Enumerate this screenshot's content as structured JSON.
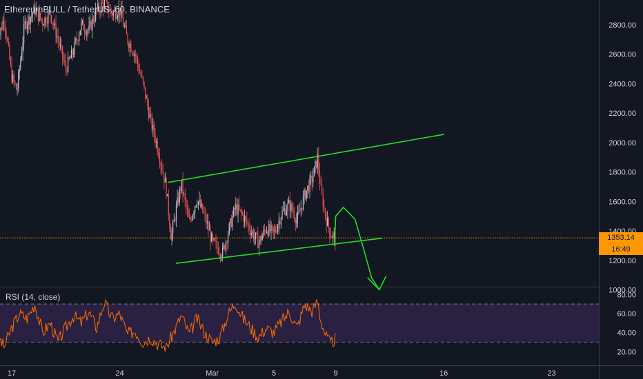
{
  "header": {
    "title": "EthereumBULL / TetherUS, 60, BINANCE",
    "rsi_label": "RSI (14, close)"
  },
  "price_tag": {
    "value": "1353.14",
    "timer": "16:49"
  },
  "colors": {
    "background": "#131722",
    "up_candle": "#bfc4cf",
    "down_candle": "#ef5350",
    "drawing": "#22dd22",
    "rsi_line": "#ff6d00",
    "rsi_band": "#2a2142",
    "price_line": "#ff9800",
    "axis_text": "#d1d4dc"
  },
  "chart_data": [
    {
      "type": "candlestick",
      "title": "EthereumBULL / TetherUS, 60, BINANCE",
      "x_ticks": [
        "17",
        "24",
        "Mar",
        "5",
        "9",
        "16",
        "23"
      ],
      "x_tick_dates": [
        "2020-02-17",
        "2020-02-24",
        "2020-03-01",
        "2020-03-05",
        "2020-03-09",
        "2020-03-16",
        "2020-03-23"
      ],
      "y_ticks": [
        "1000.00",
        "1200.00",
        "1400.00",
        "1600.00",
        "1800.00",
        "2000.00",
        "2200.00",
        "2400.00",
        "2600.00",
        "2800.00"
      ],
      "ylim": [
        900,
        2980
      ],
      "last_price": 1353.14,
      "price_path": [
        [
          "2020-02-16T00:00",
          2650
        ],
        [
          "2020-02-16T12:00",
          2850
        ],
        [
          "2020-02-17T00:00",
          2450
        ],
        [
          "2020-02-17T08:00",
          2350
        ],
        [
          "2020-02-17T20:00",
          2800
        ],
        [
          "2020-02-18T12:00",
          2900
        ],
        [
          "2020-02-19T00:00",
          2820
        ],
        [
          "2020-02-19T12:00",
          2880
        ],
        [
          "2020-02-20T00:00",
          2700
        ],
        [
          "2020-02-20T12:00",
          2500
        ],
        [
          "2020-02-21T00:00",
          2620
        ],
        [
          "2020-02-21T12:00",
          2800
        ],
        [
          "2020-02-22T00:00",
          2760
        ],
        [
          "2020-02-22T12:00",
          2900
        ],
        [
          "2020-02-23T00:00",
          2950
        ],
        [
          "2020-02-23T12:00",
          2880
        ],
        [
          "2020-02-24T00:00",
          2900
        ],
        [
          "2020-02-24T12:00",
          2700
        ],
        [
          "2020-02-25T00:00",
          2600
        ],
        [
          "2020-02-25T12:00",
          2400
        ],
        [
          "2020-02-26T00:00",
          2150
        ],
        [
          "2020-02-26T12:00",
          1950
        ],
        [
          "2020-02-27T00:00",
          1700
        ],
        [
          "2020-02-27T08:00",
          1350
        ],
        [
          "2020-02-27T16:00",
          1550
        ],
        [
          "2020-02-28T00:00",
          1720
        ],
        [
          "2020-02-28T12:00",
          1450
        ],
        [
          "2020-02-29T00:00",
          1620
        ],
        [
          "2020-02-29T12:00",
          1500
        ],
        [
          "2020-03-01T00:00",
          1320
        ],
        [
          "2020-03-01T16:00",
          1250
        ],
        [
          "2020-03-02T00:00",
          1380
        ],
        [
          "2020-03-02T12:00",
          1560
        ],
        [
          "2020-03-03T00:00",
          1500
        ],
        [
          "2020-03-03T12:00",
          1400
        ],
        [
          "2020-03-04T00:00",
          1320
        ],
        [
          "2020-03-04T12:00",
          1420
        ],
        [
          "2020-03-05T00:00",
          1380
        ],
        [
          "2020-03-05T12:00",
          1520
        ],
        [
          "2020-03-06T00:00",
          1580
        ],
        [
          "2020-03-06T12:00",
          1470
        ],
        [
          "2020-03-07T00:00",
          1650
        ],
        [
          "2020-03-07T12:00",
          1760
        ],
        [
          "2020-03-07T20:00",
          1900
        ],
        [
          "2020-03-08T00:00",
          1700
        ],
        [
          "2020-03-08T08:00",
          1500
        ],
        [
          "2020-03-08T16:00",
          1380
        ],
        [
          "2020-03-09T00:00",
          1353
        ]
      ],
      "drawings": {
        "upper_trendline": [
          [
            "2020-02-27T04:00",
            1730
          ],
          [
            "2020-03-16T00:00",
            2055
          ]
        ],
        "lower_trendline": [
          [
            "2020-02-27T16:00",
            1180
          ],
          [
            "2020-03-12T00:00",
            1350
          ]
        ],
        "projected_arrow": [
          [
            "2020-03-08T22:00",
            1300
          ],
          [
            "2020-03-09T00:00",
            1500
          ],
          [
            "2020-03-09T12:00",
            1560
          ],
          [
            "2020-03-10T06:00",
            1480
          ],
          [
            "2020-03-10T18:00",
            1300
          ],
          [
            "2020-03-11T08:00",
            1080
          ],
          [
            "2020-03-11T20:00",
            1000
          ]
        ],
        "arrow_head": [
          [
            "2020-03-11T02:00",
            1080
          ],
          [
            "2020-03-11T20:00",
            1000
          ],
          [
            "2020-03-12T06:00",
            1090
          ]
        ]
      }
    },
    {
      "type": "line",
      "title": "RSI (14, close)",
      "y_ticks": [
        "20.00",
        "40.00",
        "60.00",
        "80.00"
      ],
      "ylim": [
        17,
        84
      ],
      "band": [
        30,
        70
      ],
      "rsi_path": [
        [
          "2020-02-16T00:00",
          40
        ],
        [
          "2020-02-16T12:00",
          25
        ],
        [
          "2020-02-17T00:00",
          45
        ],
        [
          "2020-02-17T12:00",
          60
        ],
        [
          "2020-02-18T00:00",
          55
        ],
        [
          "2020-02-18T12:00",
          70
        ],
        [
          "2020-02-19T00:00",
          40
        ],
        [
          "2020-02-19T12:00",
          50
        ],
        [
          "2020-02-20T00:00",
          30
        ],
        [
          "2020-02-20T12:00",
          45
        ],
        [
          "2020-02-21T00:00",
          58
        ],
        [
          "2020-02-21T12:00",
          50
        ],
        [
          "2020-02-22T00:00",
          62
        ],
        [
          "2020-02-22T12:00",
          45
        ],
        [
          "2020-02-23T00:00",
          72
        ],
        [
          "2020-02-23T12:00",
          55
        ],
        [
          "2020-02-24T00:00",
          60
        ],
        [
          "2020-02-24T12:00",
          38
        ],
        [
          "2020-02-25T00:00",
          42
        ],
        [
          "2020-02-25T12:00",
          30
        ],
        [
          "2020-02-26T00:00",
          35
        ],
        [
          "2020-02-26T12:00",
          28
        ],
        [
          "2020-02-27T00:00",
          24
        ],
        [
          "2020-02-27T12:00",
          40
        ],
        [
          "2020-02-28T00:00",
          58
        ],
        [
          "2020-02-28T12:00",
          38
        ],
        [
          "2020-02-29T00:00",
          55
        ],
        [
          "2020-02-29T12:00",
          40
        ],
        [
          "2020-03-01T00:00",
          30
        ],
        [
          "2020-03-01T12:00",
          35
        ],
        [
          "2020-03-02T00:00",
          58
        ],
        [
          "2020-03-02T12:00",
          72
        ],
        [
          "2020-03-03T00:00",
          55
        ],
        [
          "2020-03-03T12:00",
          45
        ],
        [
          "2020-03-04T00:00",
          35
        ],
        [
          "2020-03-04T12:00",
          45
        ],
        [
          "2020-03-05T00:00",
          40
        ],
        [
          "2020-03-05T12:00",
          52
        ],
        [
          "2020-03-06T00:00",
          62
        ],
        [
          "2020-03-06T12:00",
          45
        ],
        [
          "2020-03-07T00:00",
          70
        ],
        [
          "2020-03-07T12:00",
          62
        ],
        [
          "2020-03-07T20:00",
          74
        ],
        [
          "2020-03-08T00:00",
          55
        ],
        [
          "2020-03-08T08:00",
          38
        ],
        [
          "2020-03-08T16:00",
          28
        ],
        [
          "2020-03-09T00:00",
          34
        ]
      ]
    }
  ]
}
